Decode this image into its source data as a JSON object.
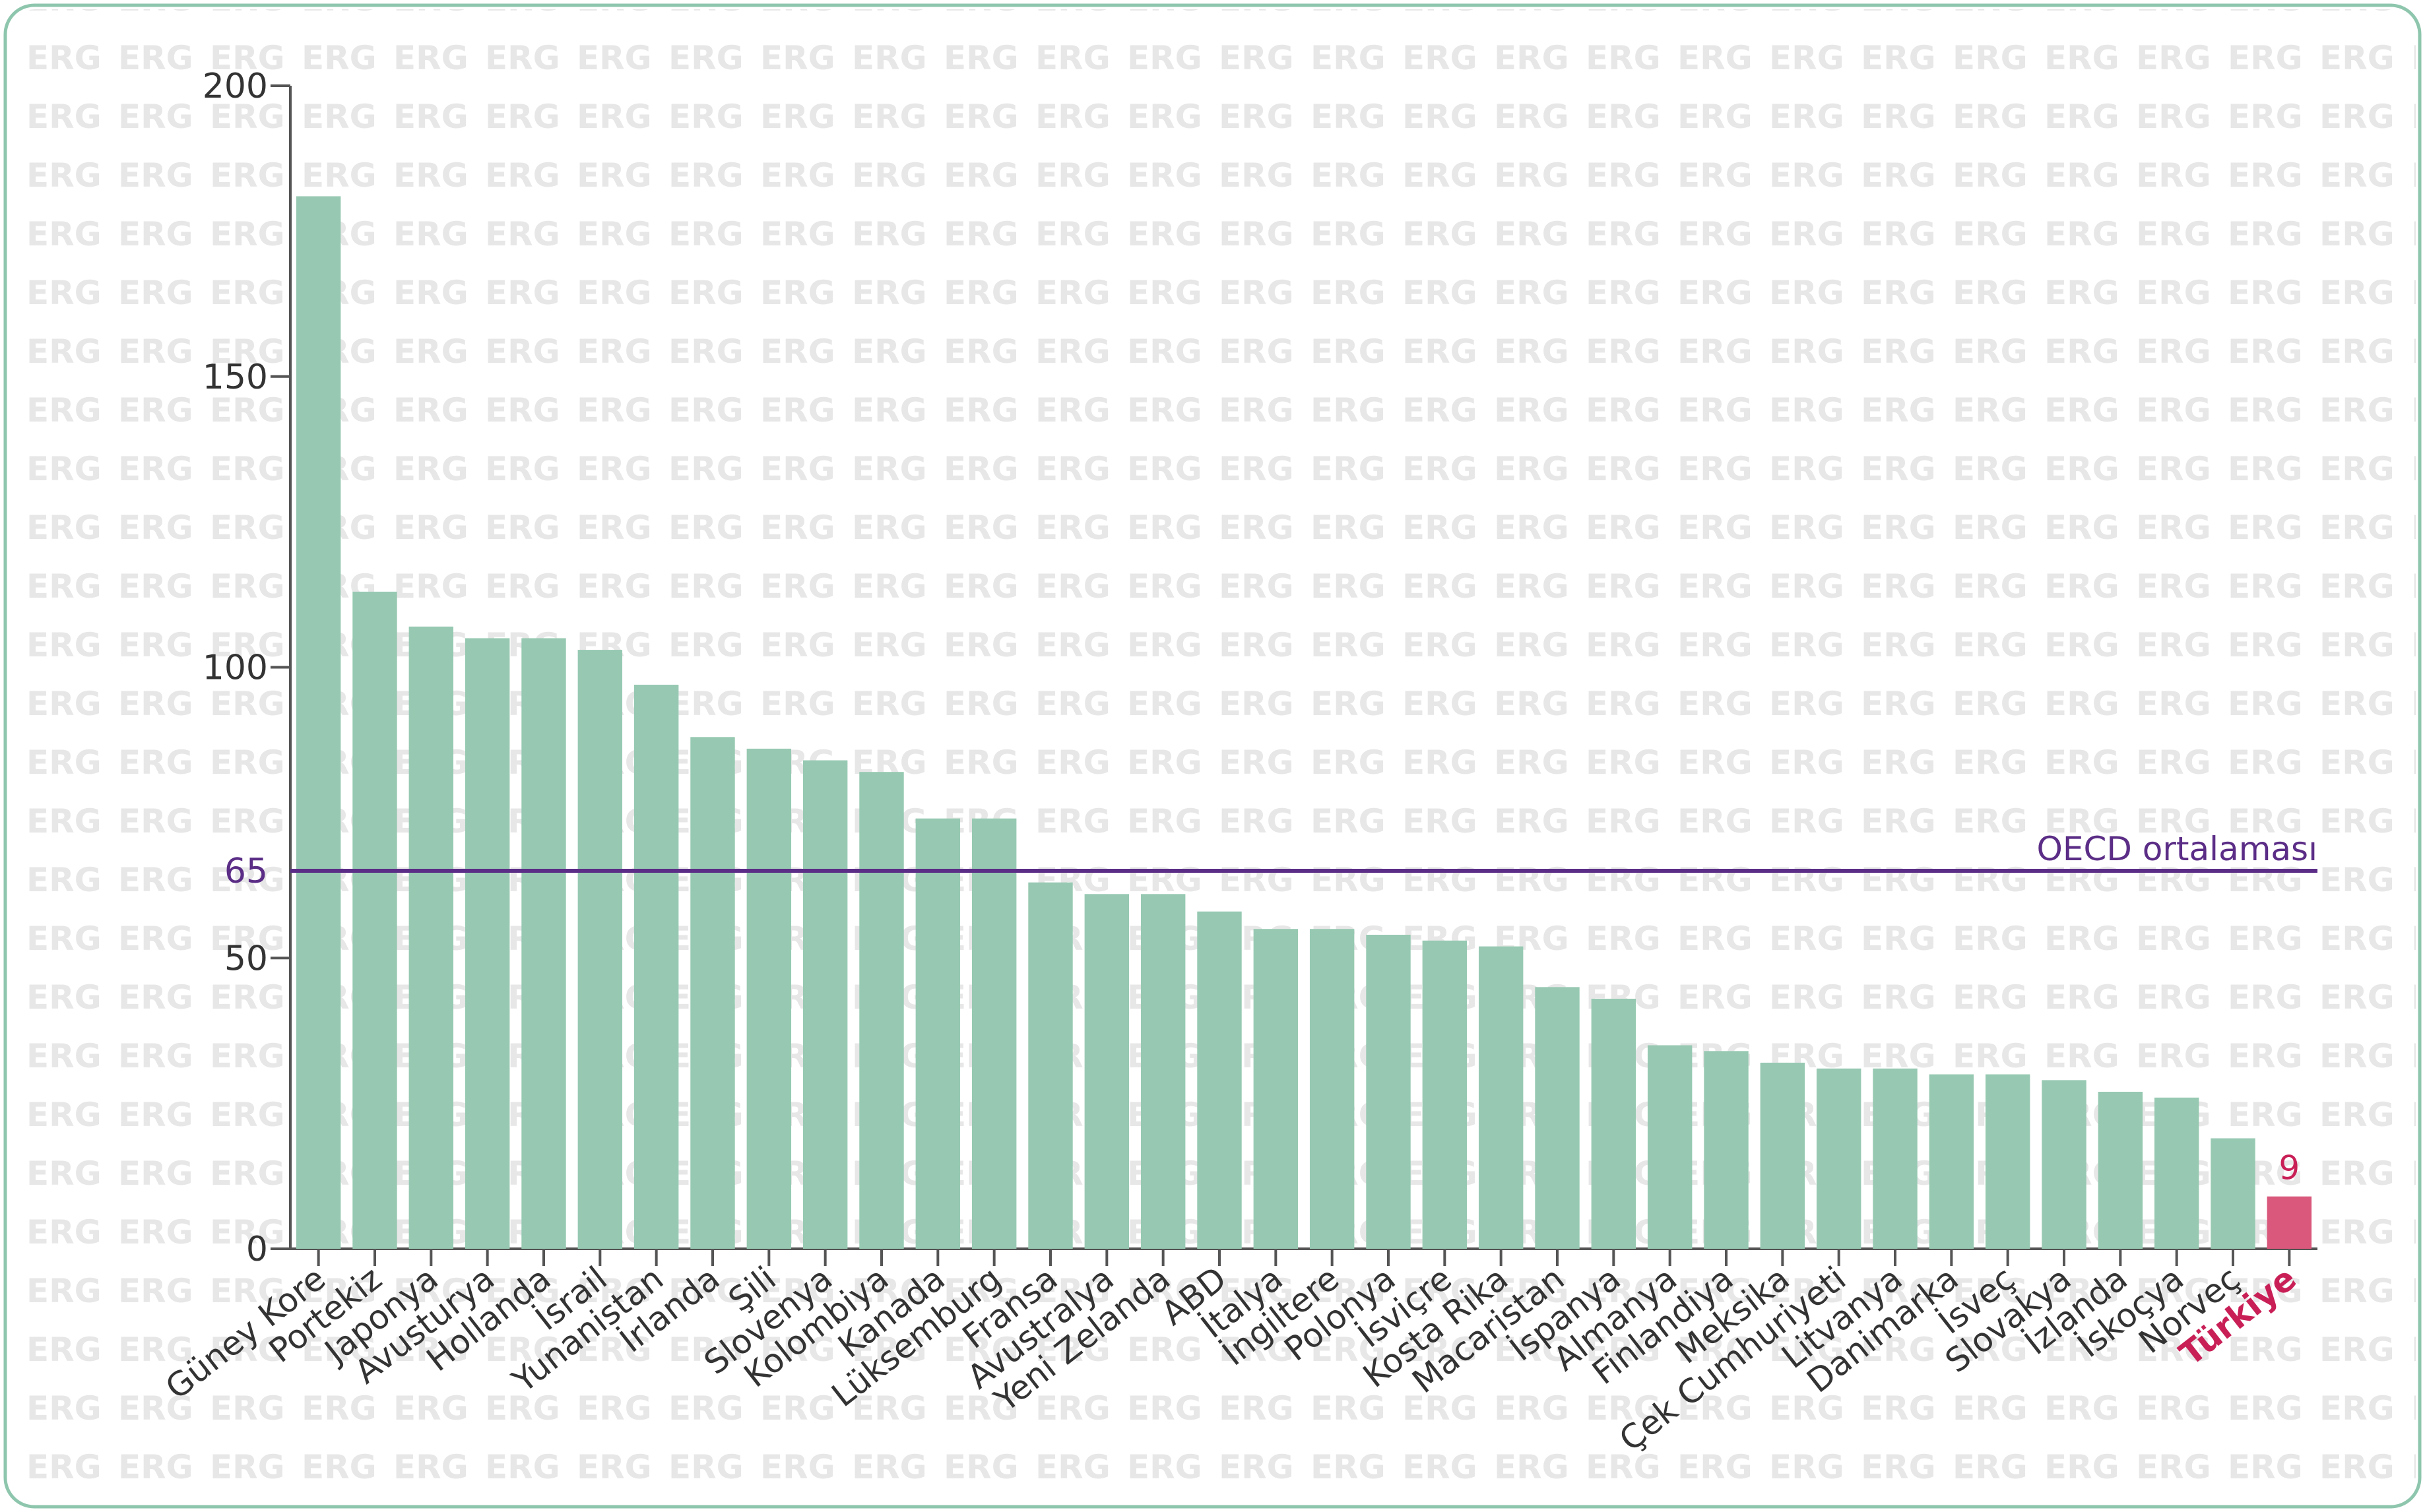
{
  "watermark_text": "ERG",
  "colors": {
    "bar": "#97c9b2",
    "highlight_bar": "#d9587b",
    "highlight_text": "#c91f57",
    "average_line": "#5b2d86",
    "axis": "#555555",
    "frame": "#8ec6ad",
    "watermark": "#e7e7e7"
  },
  "chart_data": {
    "type": "bar",
    "categories": [
      "Güney Kore",
      "Portekiz",
      "Japonya",
      "Avusturya",
      "Hollanda",
      "İsrail",
      "Yunanistan",
      "İrlanda",
      "Şili",
      "Slovenya",
      "Kolombiya",
      "Kanada",
      "Lüksemburg",
      "Fransa",
      "Avustralya",
      "Yeni Zelanda",
      "ABD",
      "İtalya",
      "İngiltere",
      "Polonya",
      "İsviçre",
      "Kosta Rika",
      "Macaristan",
      "İspanya",
      "Almanya",
      "Finlandiya",
      "Meksika",
      "Çek Cumhuriyeti",
      "Litvanya",
      "Danimarka",
      "İsveç",
      "Slovakya",
      "İzlanda",
      "İskoçya",
      "Norveç",
      "Türkiye"
    ],
    "values": [
      181,
      113,
      107,
      105,
      105,
      103,
      97,
      88,
      86,
      84,
      82,
      74,
      74,
      63,
      61,
      61,
      58,
      55,
      55,
      54,
      53,
      52,
      45,
      43,
      35,
      34,
      32,
      31,
      31,
      30,
      30,
      29,
      27,
      26,
      19,
      9
    ],
    "highlight": {
      "category": "Türkiye",
      "label": "9"
    },
    "average": {
      "value": 65,
      "label": "OECD ortalaması",
      "tick_label": "65"
    },
    "yticks": [
      {
        "value": 0,
        "label": "0"
      },
      {
        "value": 50,
        "label": "50"
      },
      {
        "value": 100,
        "label": "100"
      },
      {
        "value": 150,
        "label": "150"
      },
      {
        "value": 200,
        "label": "200"
      }
    ],
    "ylim": [
      0,
      200
    ],
    "title": "",
    "xlabel": "",
    "ylabel": "",
    "grid": false,
    "legend": "none"
  }
}
